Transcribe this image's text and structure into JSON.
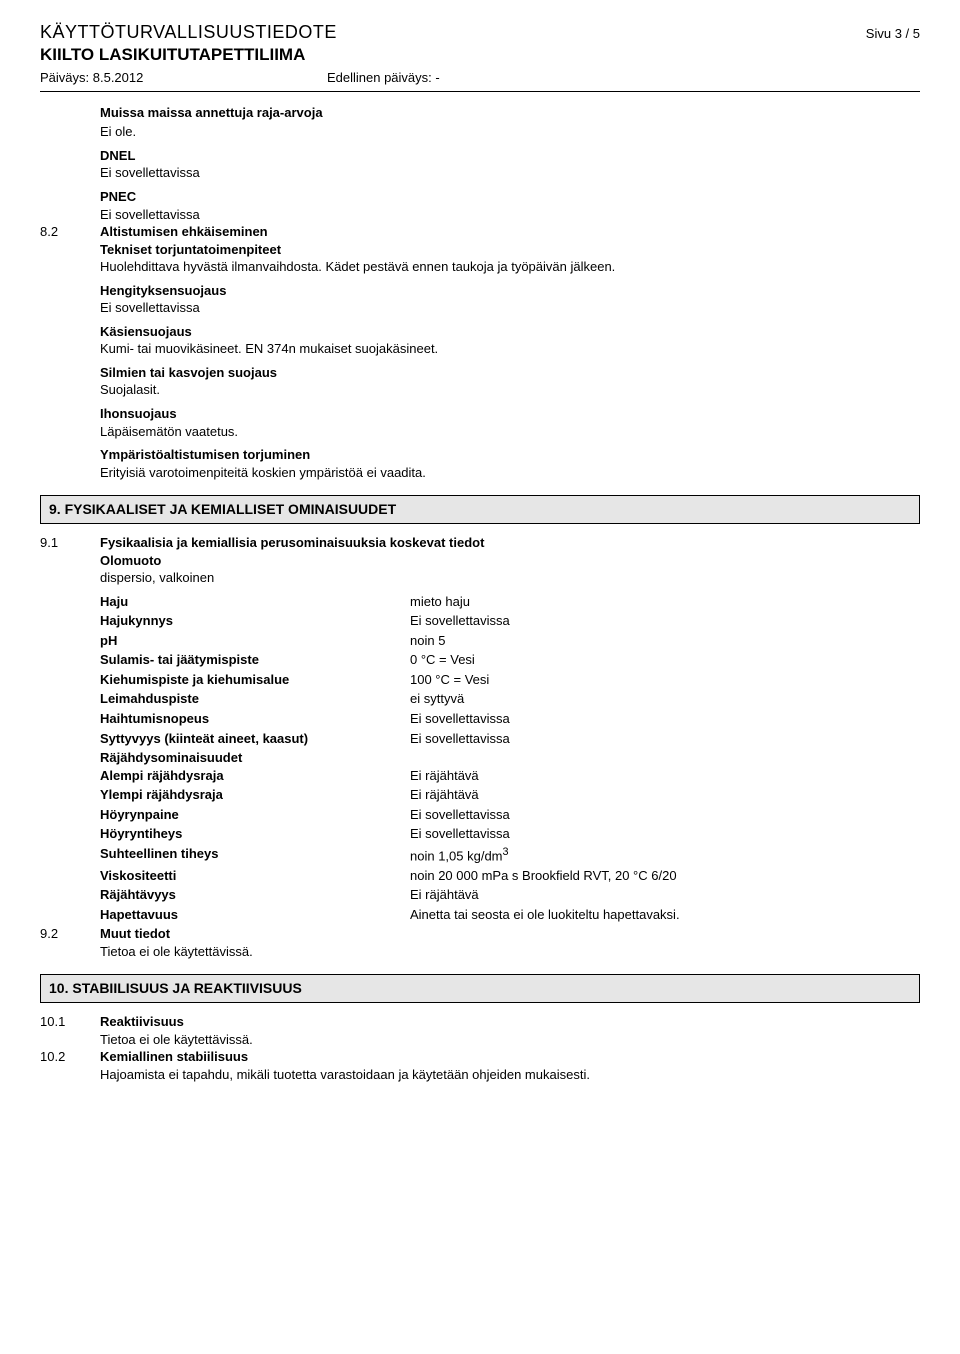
{
  "header": {
    "doc_title": "KÄYTTÖTURVALLISUUSTIEDOTE",
    "page_label": "Sivu  3 / 5",
    "product_name": "KIILTO LASIKUITUTAPETTILIIMA",
    "date_label": "Päiväys: 8.5.2012",
    "prev_date_label": "Edellinen päiväys: -"
  },
  "s8": {
    "other_limits_head": "Muissa maissa annettuja raja-arvoja",
    "other_limits_val": "Ei ole.",
    "dnel_head": "DNEL",
    "dnel_val": "Ei sovellettavissa",
    "pnec_head": "PNEC",
    "pnec_val": "Ei sovellettavissa",
    "num": "8.2",
    "exposure_head": "Altistumisen ehkäiseminen",
    "tech_head": "Tekniset torjuntatoimenpiteet",
    "tech_val": "Huolehdittava hyvästä ilmanvaihdosta. Kädet pestävä ennen taukoja ja työpäivän jälkeen.",
    "resp_head": "Hengityksensuojaus",
    "resp_val": "Ei sovellettavissa",
    "hand_head": "Käsiensuojaus",
    "hand_val": "Kumi- tai muovikäsineet. EN 374n mukaiset suojakäsineet.",
    "eye_head": "Silmien tai kasvojen suojaus",
    "eye_val": "Suojalasit.",
    "skin_head": "Ihonsuojaus",
    "skin_val": "Läpäisemätön vaatetus.",
    "env_head": "Ympäristöaltistumisen torjuminen",
    "env_val": "Erityisiä varotoimenpiteitä koskien ympäristöä ei vaadita."
  },
  "section9_title": "9. FYSIKAALISET JA KEMIALLISET OMINAISUUDET",
  "s9": {
    "num1": "9.1",
    "head1": "Fysikaalisia ja kemiallisia perusominaisuuksia koskevat tiedot",
    "state_head": "Olomuoto",
    "state_val": "dispersio, valkoinen",
    "props": [
      {
        "k": "Haju",
        "v": "mieto  haju"
      },
      {
        "k": "Hajukynnys",
        "v": "Ei sovellettavissa"
      },
      {
        "k": "pH",
        "v": "noin 5"
      },
      {
        "k": "Sulamis- tai jäätymispiste",
        "v": "0 °C = Vesi"
      },
      {
        "k": "Kiehumispiste ja kiehumisalue",
        "v": "100 °C = Vesi"
      },
      {
        "k": "Leimahduspiste",
        "v": "ei syttyvä"
      },
      {
        "k": "Haihtumisnopeus",
        "v": "Ei sovellettavissa"
      },
      {
        "k": "Syttyvyys (kiinteät aineet, kaasut)",
        "v": "Ei sovellettavissa"
      }
    ],
    "expl_head": "Räjähdysominaisuudet",
    "props2": [
      {
        "k": "Alempi räjähdysraja",
        "v": "Ei räjähtävä"
      },
      {
        "k": "Ylempi räjähdysraja",
        "v": "Ei räjähtävä"
      },
      {
        "k": "Höyrynpaine",
        "v": "Ei sovellettavissa"
      },
      {
        "k": "Höyryntiheys",
        "v": "Ei sovellettavissa"
      }
    ],
    "density_k": "Suhteellinen tiheys",
    "density_v_pre": "noin  1,05 kg/dm",
    "density_v_sup": "3",
    "props3": [
      {
        "k": "Viskositeetti",
        "v": "noin  20 000 mPa s Brookfield RVT, 20 °C  6/20"
      },
      {
        "k": "Räjähtävyys",
        "v": "Ei räjähtävä"
      },
      {
        "k": "Hapettavuus",
        "v": "Ainetta tai seosta ei ole luokiteltu hapettavaksi."
      }
    ],
    "num2": "9.2",
    "other_head": "Muut tiedot",
    "other_val": "Tietoa ei ole käytettävissä."
  },
  "section10_title": "10. STABIILISUUS JA REAKTIIVISUUS",
  "s10": {
    "num1": "10.1",
    "react_head": "Reaktiivisuus",
    "react_val": "Tietoa ei ole käytettävissä.",
    "num2": "10.2",
    "chem_head": "Kemiallinen stabiilisuus",
    "chem_val": "Hajoamista ei tapahdu, mikäli tuotetta varastoidaan ja käytetään ohjeiden mukaisesti."
  }
}
